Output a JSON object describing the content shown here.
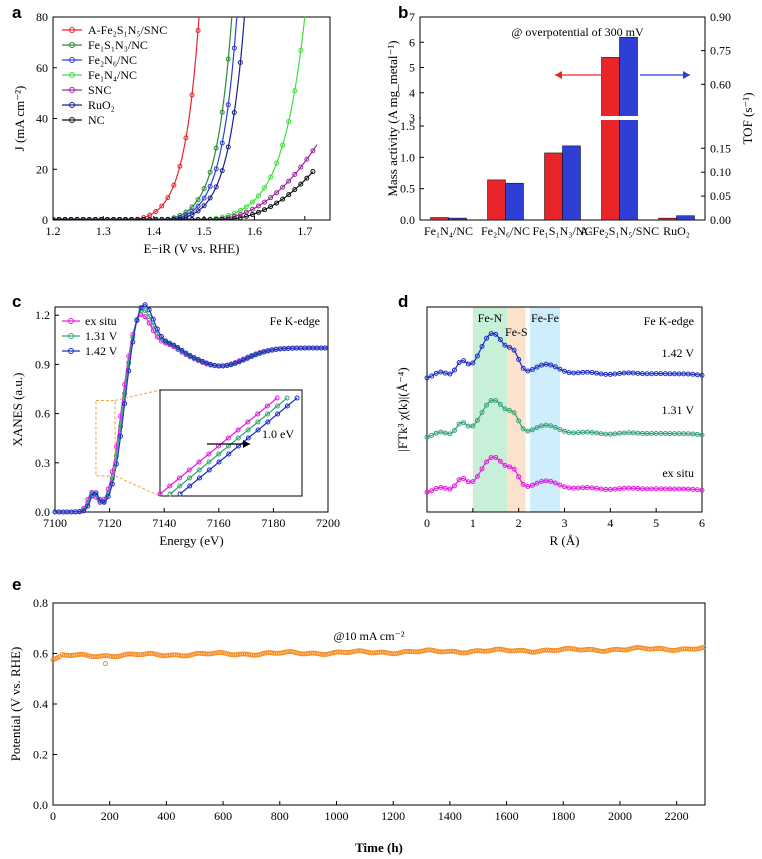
{
  "chart_data": [
    {
      "panel": "a",
      "type": "line",
      "xlabel": "E−iR (V vs. RHE)",
      "ylabel": "J (mA cm⁻²)",
      "xlim": [
        1.2,
        1.75
      ],
      "ylim": [
        0,
        80
      ],
      "xticks": [
        "1.2",
        "1.3",
        "1.4",
        "1.5",
        "1.6",
        "1.7"
      ],
      "yticks": [
        "0",
        "20",
        "40",
        "60",
        "80"
      ],
      "legend_position": "top-left",
      "series": [
        {
          "name": "A-Fe₂S₁N₅/SNC",
          "color": "#e8262a",
          "onset": 1.36,
          "x_at_80": 1.49,
          "k": 0.0293
        },
        {
          "name": "Fe₁S₁N₃/NC",
          "color": "#2a8a3c",
          "onset": 1.42,
          "x_at_80": 1.555,
          "k": 0.0305
        },
        {
          "name": "Fe₂N₆/NC",
          "color": "#2e3fd6",
          "onset": 1.43,
          "x_at_80": 1.565,
          "k": 0.0305
        },
        {
          "name": "Fe₁N₄/NC",
          "color": "#3fe03a",
          "onset": 1.5,
          "x_at_80": 1.7,
          "k": 0.045
        },
        {
          "name": "SNC",
          "color": "#9a2aa0",
          "onset": 1.5,
          "x_end": 1.725,
          "y_end": 30
        },
        {
          "name": "RuO₂",
          "color": "#1a2288",
          "onset": 1.44,
          "x_at_80": 1.58,
          "k": 0.032
        },
        {
          "name": "NC",
          "color": "#111111",
          "onset": 1.52,
          "x_end": 1.72,
          "y_end": 20
        }
      ]
    },
    {
      "panel": "b",
      "type": "bar",
      "annotation": "@ overpotential of 300 mV",
      "ylabel_left": "Mass activity (A mg_metal⁻¹)",
      "ylabel_right": "TOF (s⁻¹)",
      "categories": [
        "Fe₁N₄/NC",
        "Fe₂N₆/NC",
        "Fe₁S₁N₃/NC",
        "A-Fe₂S₁N₅/SNC",
        "RuO₂"
      ],
      "series": [
        {
          "name": "Mass activity",
          "axis": "left",
          "color": "#e8262a",
          "values": [
            0.04,
            0.64,
            1.07,
            5.4,
            0.03
          ]
        },
        {
          "name": "TOF",
          "axis": "right",
          "color": "#2e3fd6",
          "values": [
            0.004,
            0.077,
            0.155,
            0.81,
            0.009
          ]
        }
      ],
      "left_axis_breaks": {
        "lower": [
          0,
          1.5
        ],
        "upper": [
          3,
          7
        ]
      },
      "right_axis_breaks": {
        "lower": [
          0,
          0.23
        ],
        "upper": [
          0.45,
          0.9
        ]
      },
      "left_ticks": [
        "0.0",
        "0.5",
        "1.0",
        "1.5",
        "3",
        "4",
        "5",
        "6",
        "7"
      ],
      "right_ticks": [
        "0.00",
        "0.05",
        "0.10",
        "0.15",
        "0.60",
        "0.75",
        "0.90"
      ]
    },
    {
      "panel": "c",
      "type": "line",
      "xlabel": "Energy (eV)",
      "ylabel": "XANES (a.u.)",
      "annotation": "Fe K-edge",
      "inset_annotation": "1.0 eV",
      "xlim": [
        7100,
        7200
      ],
      "ylim": [
        0,
        1.25
      ],
      "xticks": [
        "7100",
        "7120",
        "7140",
        "7160",
        "7180",
        "7200"
      ],
      "yticks": [
        "0.0",
        "0.3",
        "0.6",
        "0.9",
        "1.2"
      ],
      "series": [
        {
          "name": "ex situ",
          "color": "#e21ee2",
          "shift": 0.0,
          "peak": 1.11
        },
        {
          "name": "1.31 V",
          "color": "#3aa37a",
          "shift": 0.5,
          "peak": 1.13
        },
        {
          "name": "1.42 V",
          "color": "#1f2fc8",
          "shift": 1.0,
          "peak": 1.15
        }
      ]
    },
    {
      "panel": "d",
      "type": "line",
      "xlabel": "R (Å)",
      "ylabel": "|FTk³ χ(k)|(Å⁻⁴)",
      "annotation": "Fe K-edge",
      "regions": [
        {
          "label": "Fe-N",
          "from": 1.0,
          "to": 1.75,
          "color": "#c8f0d8"
        },
        {
          "label": "Fe-S",
          "from": 1.75,
          "to": 2.15,
          "color": "#fbe2cc"
        },
        {
          "label": "Fe-Fe",
          "from": 2.25,
          "to": 2.9,
          "color": "#cdeefa"
        }
      ],
      "xlim": [
        0,
        6
      ],
      "xticks": [
        "0",
        "1",
        "2",
        "3",
        "4",
        "5",
        "6"
      ],
      "series": [
        {
          "name": "1.42 V",
          "color": "#1f2fc8",
          "offset": 2
        },
        {
          "name": "1.31 V",
          "color": "#3aa37a",
          "offset": 1
        },
        {
          "name": "ex situ",
          "color": "#e21ee2",
          "offset": 0
        }
      ]
    },
    {
      "panel": "e",
      "type": "scatter",
      "annotation": "@10 mA cm⁻²",
      "xlabel": "Time (h)",
      "ylabel": "Potential (V vs. RHE)",
      "xlim": [
        0,
        2300
      ],
      "ylim": [
        0,
        0.8
      ],
      "xticks": [
        "0",
        "200",
        "400",
        "600",
        "800",
        "1000",
        "1200",
        "1400",
        "1600",
        "1800",
        "2000",
        "2200"
      ],
      "yticks": [
        "0.0",
        "0.2",
        "0.4",
        "0.6",
        "0.8"
      ],
      "series": [
        {
          "name": "",
          "color": "#f58a1f",
          "start": 0.575,
          "plateau": 0.59,
          "end": 0.62,
          "outlier_x": 185,
          "outlier_y": 0.56
        }
      ]
    }
  ],
  "panel_labels": [
    "a",
    "b",
    "c",
    "d",
    "e"
  ]
}
